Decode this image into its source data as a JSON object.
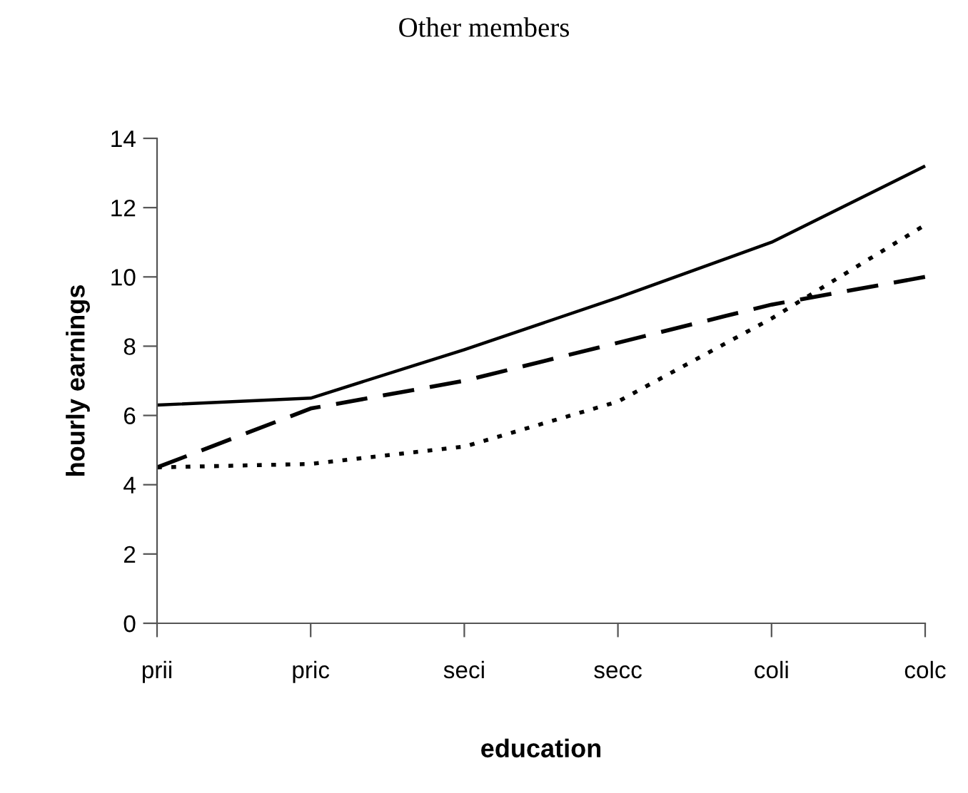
{
  "chart_data": {
    "type": "line",
    "title": "Other members",
    "xlabel": "education",
    "ylabel": "hourly earnings",
    "categories": [
      "prii",
      "pric",
      "seci",
      "secc",
      "coli",
      "colc"
    ],
    "series": [
      {
        "color": "#000000",
        "line_style": "solid",
        "values": [
          6.3,
          6.5,
          7.9,
          9.4,
          11.0,
          13.2
        ]
      },
      {
        "color": "#000000",
        "line_style": "dashed",
        "values": [
          4.5,
          6.2,
          7.0,
          8.1,
          9.2,
          10.0
        ]
      },
      {
        "color": "#000000",
        "line_style": "dotted",
        "values": [
          4.5,
          4.6,
          5.1,
          6.4,
          8.8,
          11.5
        ]
      }
    ],
    "ylim": [
      0,
      14
    ],
    "yticks": [
      0,
      2,
      4,
      6,
      8,
      10,
      12,
      14
    ],
    "grid": false,
    "marker": "none"
  }
}
